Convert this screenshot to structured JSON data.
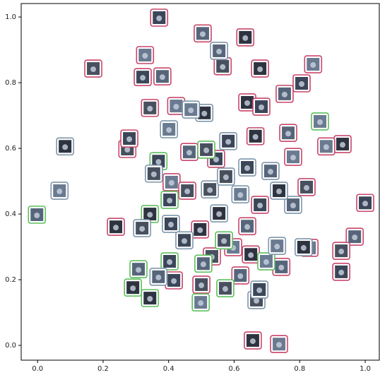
{
  "chart_data": {
    "type": "scatter",
    "xlim": [
      -0.05,
      1.043
    ],
    "ylim": [
      -0.045,
      1.041
    ],
    "xticks": [
      {
        "value": 0,
        "label": "0.0"
      },
      {
        "value": 0.2,
        "label": "0.2"
      },
      {
        "value": 0.4,
        "label": "0.4"
      },
      {
        "value": 0.6,
        "label": "0.6"
      },
      {
        "value": 0.8,
        "label": "0.8"
      },
      {
        "value": 1,
        "label": "1.0"
      }
    ],
    "yticks": [
      {
        "value": 0,
        "label": "0.0"
      },
      {
        "value": 0.2,
        "label": "0.2"
      },
      {
        "value": 0.4,
        "label": "0.4"
      },
      {
        "value": 0.6,
        "label": "0.6"
      },
      {
        "value": 0.8,
        "label": "0.8"
      },
      {
        "value": 1,
        "label": "1.0"
      }
    ],
    "grid": false,
    "series": [
      {
        "color": "#c8456a",
        "x": [
          0.371,
          0.504,
          0.634,
          0.328,
          0.17,
          0.321,
          0.381,
          0.679,
          0.841,
          0.565,
          0.806,
          0.754,
          0.64,
          0.423,
          0.343,
          0.683,
          0.765,
          0.931,
          0.881,
          0.274,
          0.28,
          0.463,
          0.665,
          0.78,
          0.821,
          1.0,
          0.968,
          0.239,
          0.409,
          0.457,
          0.679,
          0.64,
          0.496,
          0.83,
          0.927,
          0.927,
          0.744,
          0.651,
          0.597,
          0.5,
          0.416,
          0.619,
          0.657,
          0.737,
          0.532,
          0.545
        ],
        "y": [
          0.998,
          0.95,
          0.938,
          0.884,
          0.843,
          0.817,
          0.819,
          0.843,
          0.856,
          0.85,
          0.798,
          0.766,
          0.74,
          0.729,
          0.723,
          0.727,
          0.647,
          0.613,
          0.606,
          0.598,
          0.63,
          0.589,
          0.637,
          0.574,
          0.482,
          0.434,
          0.331,
          0.361,
          0.497,
          0.471,
          0.428,
          0.363,
          0.353,
          0.297,
          0.288,
          0.224,
          0.239,
          0.277,
          0.299,
          0.185,
          0.198,
          0.213,
          0.015,
          0.004,
          0.271,
          0.568
        ]
      },
      {
        "color": "#5cbf5c",
        "x": [
          -0.002,
          0.343,
          0.862,
          0.515,
          0.369,
          0.308,
          0.343,
          0.498,
          0.573,
          0.403,
          0.506,
          0.291,
          0.698,
          0.569,
          0.403
        ],
        "y": [
          0.398,
          0.4,
          0.682,
          0.596,
          0.561,
          0.232,
          0.144,
          0.131,
          0.174,
          0.256,
          0.249,
          0.176,
          0.256,
          0.32,
          0.443
        ]
      },
      {
        "color": "#7d96ab",
        "x": [
          0.084,
          0.067,
          0.319,
          0.407,
          0.554,
          0.509,
          0.401,
          0.355,
          0.582,
          0.78,
          0.737,
          0.619,
          0.526,
          0.64,
          0.711,
          0.812,
          0.731,
          0.668,
          0.677,
          0.369,
          0.554,
          0.468,
          0.575,
          0.448
        ],
        "y": [
          0.606,
          0.471,
          0.357,
          0.37,
          0.897,
          0.708,
          0.658,
          0.523,
          0.622,
          0.428,
          0.471,
          0.46,
          0.475,
          0.542,
          0.531,
          0.299,
          0.303,
          0.138,
          0.17,
          0.209,
          0.402,
          0.718,
          0.514,
          0.32
        ]
      }
    ]
  }
}
